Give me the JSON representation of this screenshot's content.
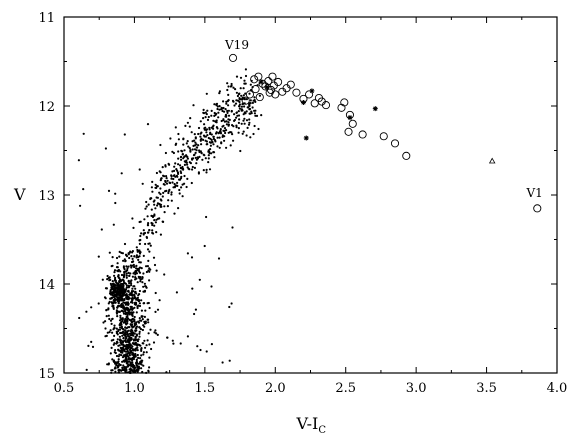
{
  "chart_data": {
    "type": "scatter",
    "xlabel_main": "V-I",
    "xlabel_sub": "C",
    "ylabel": "V",
    "xlim": [
      0.5,
      4.0
    ],
    "ylim": [
      15.0,
      11.0
    ],
    "y_inverted": true,
    "grid": false,
    "x_ticks": [
      "0.5",
      "1.0",
      "1.5",
      "2.0",
      "2.5",
      "3.0",
      "3.5",
      "4.0"
    ],
    "y_ticks": [
      "11",
      "12",
      "13",
      "14",
      "15"
    ],
    "annotations": [
      {
        "text": "V19",
        "x": 1.7,
        "y": 11.36
      },
      {
        "text": "V1",
        "x": 3.84,
        "y": 13.02
      }
    ],
    "series": [
      {
        "marker": "open-circle",
        "points": [
          [
            1.7,
            11.46
          ],
          [
            3.86,
            13.15
          ],
          [
            1.79,
            11.94
          ],
          [
            1.82,
            11.87
          ],
          [
            1.85,
            11.7
          ],
          [
            1.86,
            11.81
          ],
          [
            1.88,
            11.67
          ],
          [
            1.89,
            11.9
          ],
          [
            1.91,
            11.75
          ],
          [
            1.93,
            11.78
          ],
          [
            1.95,
            11.72
          ],
          [
            1.96,
            11.85
          ],
          [
            1.97,
            11.82
          ],
          [
            1.98,
            11.67
          ],
          [
            1.99,
            11.77
          ],
          [
            2.0,
            11.87
          ],
          [
            2.02,
            11.73
          ],
          [
            2.05,
            11.84
          ],
          [
            2.08,
            11.8
          ],
          [
            2.11,
            11.76
          ],
          [
            2.15,
            11.85
          ],
          [
            2.2,
            11.92
          ],
          [
            2.24,
            11.87
          ],
          [
            2.28,
            11.97
          ],
          [
            2.31,
            11.91
          ],
          [
            2.33,
            11.95
          ],
          [
            2.36,
            11.99
          ],
          [
            2.47,
            12.02
          ],
          [
            2.49,
            11.96
          ],
          [
            2.53,
            12.1
          ],
          [
            2.55,
            12.2
          ],
          [
            2.52,
            12.29
          ],
          [
            2.62,
            12.32
          ],
          [
            2.77,
            12.34
          ],
          [
            2.85,
            12.42
          ],
          [
            2.93,
            12.56
          ]
        ]
      },
      {
        "marker": "asterisk",
        "points": [
          [
            2.2,
            11.96
          ],
          [
            2.26,
            11.83
          ],
          [
            2.22,
            12.36
          ],
          [
            2.53,
            12.13
          ],
          [
            2.71,
            12.03
          ],
          [
            1.9,
            11.73
          ],
          [
            1.94,
            11.79
          ]
        ]
      },
      {
        "marker": "open-triangle",
        "points": [
          [
            3.54,
            12.62
          ]
        ]
      },
      {
        "marker": "dot",
        "generated": true,
        "components": [
          {
            "name": "main-sequence-turnoff",
            "n": 900,
            "x_center": 0.96,
            "x_sigma": 0.07,
            "y_range": [
              13.6,
              15.0
            ]
          },
          {
            "name": "red-clump",
            "n": 170,
            "x_center": 0.88,
            "x_sigma": 0.035,
            "y_center": 14.08,
            "y_sigma": 0.07
          },
          {
            "name": "red-giant-branch",
            "n": 560,
            "x_range": [
              1.02,
              1.85
            ],
            "y_of_x": "12.0 + 1.55*(1.85-x)^1.7 / 0.83^1.7",
            "y_sigma": 0.17
          },
          {
            "name": "scattered-field",
            "n": 80,
            "x_range": [
              0.6,
              1.7
            ],
            "y_range": [
              12.2,
              15.0
            ]
          }
        ]
      }
    ]
  }
}
